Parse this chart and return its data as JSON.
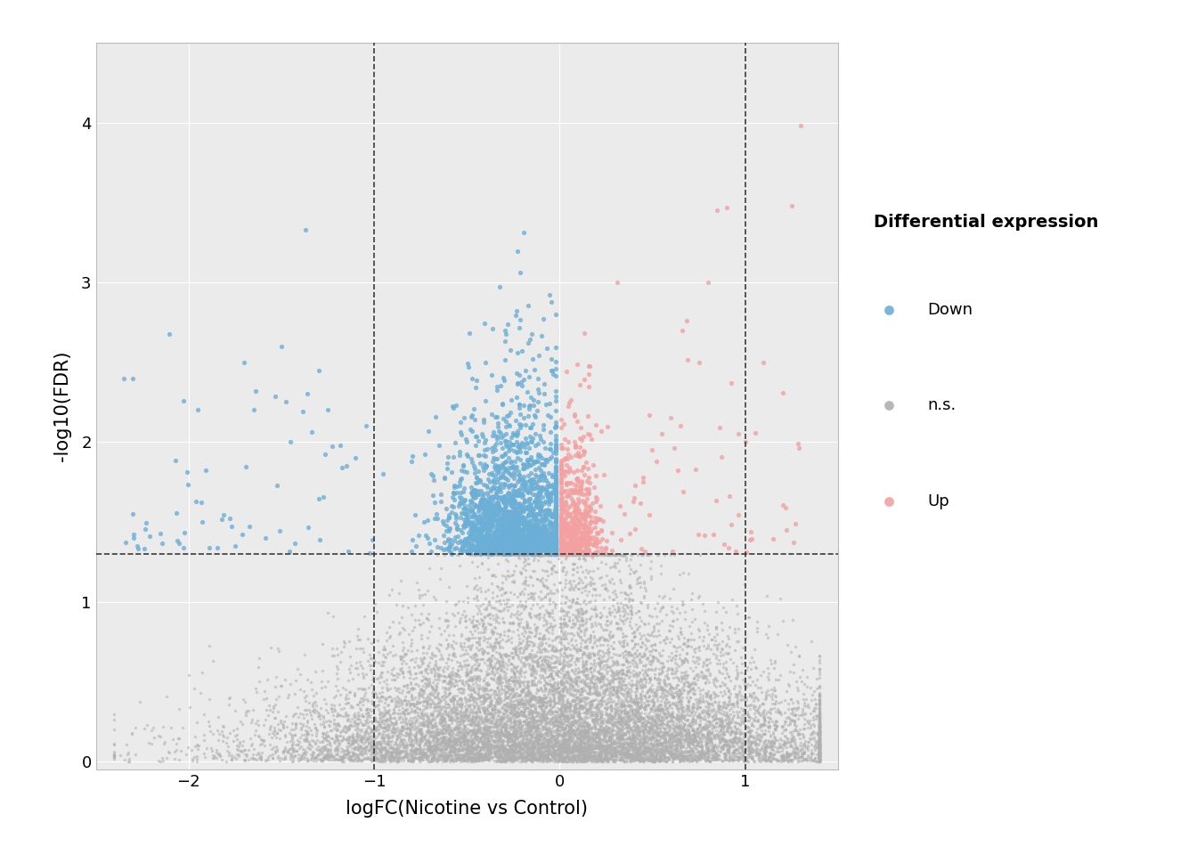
{
  "xlabel": "logFC(Nicotine vs Control)",
  "ylabel": "-log10(FDR)",
  "xlim": [
    -2.5,
    1.5
  ],
  "ylim": [
    -0.05,
    4.5
  ],
  "xticks": [
    -2,
    -1,
    0,
    1
  ],
  "yticks": [
    0,
    1,
    2,
    3,
    4
  ],
  "fc_threshold": 1.0,
  "fdr_threshold": 1.301,
  "color_down": "#6BAED6",
  "color_ns": "#B0B0B0",
  "color_up": "#F4A0A0",
  "legend_title": "Differential expression",
  "legend_labels": [
    "Down",
    "n.s.",
    "Up"
  ],
  "bg_color": "#EBEBEB",
  "grid_color": "#FFFFFF",
  "seed": 42
}
